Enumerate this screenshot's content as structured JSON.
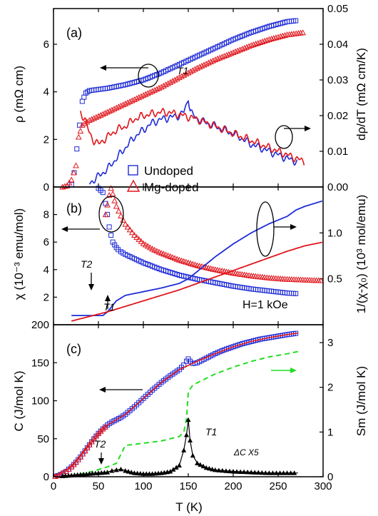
{
  "chart_data": [
    {
      "panel": "(a)",
      "type": "scatter",
      "xlim": [
        0,
        300
      ],
      "ylim_left": [
        0,
        7.5
      ],
      "ylim_right": [
        0,
        0.05
      ],
      "ylabel_left": "ρ (mΩ cm)",
      "ylabel_right": "dρ/dT (mΩ cm/K)",
      "yticks_left": [
        "0",
        "2",
        "4",
        "6"
      ],
      "yticks_right": [
        "0.00",
        "0.01",
        "0.02",
        "0.03",
        "0.04",
        "0.05"
      ],
      "annotations": [
        "T1"
      ],
      "series": [
        {
          "name": "Undoped",
          "kind": "rho",
          "axis": "left",
          "x": [
            20,
            23,
            26,
            29,
            32,
            36,
            40,
            50,
            60,
            80,
            100,
            120,
            140,
            160,
            180,
            200,
            220,
            240,
            260,
            272
          ],
          "y": [
            0.1,
            0.6,
            1.6,
            2.6,
            3.6,
            3.95,
            4.05,
            4.1,
            4.15,
            4.3,
            4.5,
            4.8,
            5.15,
            5.5,
            5.85,
            6.2,
            6.5,
            6.75,
            6.95,
            7.0
          ]
        },
        {
          "name": "Mg-doped",
          "kind": "rho",
          "axis": "left",
          "x": [
            10,
            15,
            20,
            25,
            28,
            32,
            40,
            60,
            80,
            100,
            120,
            140,
            160,
            180,
            200,
            220,
            240,
            260,
            280
          ],
          "y": [
            0.0,
            0.05,
            0.3,
            0.9,
            2.1,
            2.6,
            2.8,
            3.15,
            3.5,
            3.85,
            4.2,
            4.6,
            5.0,
            5.35,
            5.65,
            5.95,
            6.2,
            6.4,
            6.5
          ]
        },
        {
          "name": "Undoped dρ/dT",
          "kind": "drho",
          "axis": "right",
          "x": [
            40,
            50,
            60,
            70,
            80,
            90,
            100,
            110,
            120,
            130,
            140,
            145,
            148,
            150,
            152,
            155,
            160,
            180,
            200,
            220,
            240,
            260,
            272
          ],
          "y": [
            0.001,
            0.003,
            0.005,
            0.008,
            0.011,
            0.014,
            0.016,
            0.018,
            0.019,
            0.0195,
            0.02,
            0.021,
            0.023,
            0.025,
            0.022,
            0.02,
            0.019,
            0.017,
            0.015,
            0.012,
            0.01,
            0.008,
            0.007
          ]
        },
        {
          "name": "Mg-doped dρ/dT",
          "kind": "drho",
          "axis": "right",
          "x": [
            30,
            35,
            40,
            45,
            50,
            60,
            70,
            80,
            90,
            100,
            110,
            120,
            130,
            140,
            160,
            180,
            200,
            220,
            240,
            260,
            280
          ],
          "y": [
            0.021,
            0.019,
            0.015,
            0.013,
            0.012,
            0.014,
            0.016,
            0.017,
            0.019,
            0.02,
            0.0205,
            0.021,
            0.0208,
            0.0203,
            0.019,
            0.017,
            0.015,
            0.013,
            0.011,
            0.009,
            0.007
          ]
        }
      ]
    },
    {
      "panel": "(b)",
      "type": "scatter",
      "xlim": [
        0,
        300
      ],
      "ylim_left": [
        0,
        10
      ],
      "ylim_right": [
        0,
        1.5
      ],
      "ylabel_left": "χ (10⁻³ emu/mol)",
      "ylabel_right": "1/(χ-χ₀) (10³ mol/emu)",
      "yticks_left": [
        "2",
        "4",
        "6",
        "8"
      ],
      "yticks_right": [
        "0.5",
        "1.0"
      ],
      "annotations": [
        "T2",
        "T1",
        "H=1 kOe"
      ],
      "series": [
        {
          "name": "Undoped",
          "kind": "chi",
          "axis": "left",
          "x": [
            50,
            55,
            58,
            60,
            62,
            64,
            66,
            68,
            70,
            72,
            75,
            80,
            90,
            100,
            120,
            140,
            160,
            180,
            200,
            220,
            240,
            260,
            272
          ],
          "y": [
            9.9,
            9.6,
            8.8,
            8.0,
            7.1,
            6.5,
            6.0,
            5.8,
            5.6,
            5.45,
            5.3,
            5.1,
            4.8,
            4.5,
            4.0,
            3.6,
            3.3,
            3.05,
            2.8,
            2.6,
            2.45,
            2.3,
            2.25
          ]
        },
        {
          "name": "Mg-doped",
          "kind": "chi",
          "axis": "left",
          "x": [
            58,
            62,
            64,
            66,
            68,
            70,
            75,
            80,
            90,
            100,
            110,
            120,
            140,
            160,
            180,
            200,
            220,
            240,
            260,
            280,
            300
          ],
          "y": [
            8.0,
            9.4,
            9.9,
            9.5,
            9.0,
            8.6,
            7.9,
            7.3,
            6.5,
            5.9,
            5.5,
            5.2,
            4.7,
            4.3,
            4.0,
            3.75,
            3.55,
            3.4,
            3.3,
            3.25,
            3.2
          ]
        },
        {
          "name": "Undoped 1/(χ-χ₀)",
          "kind": "invchi",
          "axis": "right",
          "x": [
            20,
            30,
            40,
            50,
            55,
            60,
            65,
            70,
            80,
            90,
            100,
            120,
            140,
            150,
            160,
            180,
            200,
            220,
            240,
            260,
            270,
            280,
            290,
            300
          ],
          "y": [
            0.1,
            0.1,
            0.1,
            0.1,
            0.1,
            0.14,
            0.2,
            0.26,
            0.32,
            0.34,
            0.36,
            0.4,
            0.45,
            0.5,
            0.58,
            0.74,
            0.88,
            1.0,
            1.1,
            1.18,
            1.25,
            1.29,
            1.32,
            1.35
          ]
        },
        {
          "name": "Mg-doped 1/(χ-χ₀)",
          "kind": "invchi",
          "axis": "right",
          "x": [
            20,
            40,
            60,
            80,
            100,
            120,
            140,
            160,
            180,
            200,
            220,
            240,
            260,
            280,
            300
          ],
          "y": [
            0.04,
            0.09,
            0.14,
            0.2,
            0.26,
            0.32,
            0.38,
            0.45,
            0.52,
            0.59,
            0.66,
            0.73,
            0.8,
            0.86,
            0.9
          ]
        }
      ]
    },
    {
      "panel": "(c)",
      "type": "scatter",
      "xlim": [
        0,
        300
      ],
      "ylim_left": [
        0,
        200
      ],
      "ylim_right": [
        0,
        3.4
      ],
      "xlabel": "T (K)",
      "ylabel_left": "C (J/mol K)",
      "ylabel_right": "Sm (J/mol K)",
      "xticks": [
        "0",
        "50",
        "100",
        "150",
        "200",
        "250",
        "300"
      ],
      "yticks_left": [
        "0",
        "50",
        "100",
        "150",
        "200"
      ],
      "yticks_right": [
        "0",
        "1",
        "2",
        "3"
      ],
      "annotations": [
        "T2",
        "T1",
        "ΔC X5"
      ],
      "series": [
        {
          "name": "Undoped C",
          "kind": "c_sq",
          "axis": "left",
          "x": [
            2,
            5,
            8,
            11,
            14,
            17,
            20,
            25,
            30,
            35,
            40,
            45,
            50,
            55,
            60,
            65,
            70,
            75,
            80,
            90,
            100,
            110,
            120,
            130,
            140,
            145,
            148,
            150,
            152,
            155,
            160,
            170,
            180,
            190,
            200,
            210,
            220,
            230,
            240,
            250,
            260,
            272
          ],
          "y": [
            0.5,
            1.5,
            3,
            5,
            7,
            10,
            13,
            19,
            26,
            34,
            42,
            50,
            57,
            63,
            68,
            72,
            75,
            78,
            82,
            92,
            103,
            114,
            124,
            133,
            141,
            147,
            152,
            155,
            152,
            149,
            150,
            156,
            162,
            167,
            171,
            175,
            178,
            181,
            183,
            185,
            187,
            189
          ]
        },
        {
          "name": "Mg-doped C",
          "kind": "c_tri",
          "axis": "left",
          "x": [
            2,
            5,
            8,
            11,
            14,
            17,
            20,
            25,
            30,
            35,
            40,
            45,
            50,
            55,
            60
          ],
          "y": [
            0.5,
            1.5,
            3,
            5,
            7,
            10,
            13,
            19,
            26,
            34,
            42,
            50,
            57,
            63,
            68
          ]
        },
        {
          "name": "C fit",
          "kind": "c_fit",
          "axis": "left",
          "x": [
            0,
            20,
            40,
            60,
            80,
            100,
            120,
            140,
            160,
            180,
            200,
            220,
            240,
            260,
            272
          ],
          "y": [
            0,
            13,
            42,
            68,
            82,
            103,
            124,
            141,
            152,
            162,
            171,
            178,
            183,
            187,
            189
          ]
        },
        {
          "name": "Sm",
          "kind": "entropy",
          "axis": "right",
          "x": [
            20,
            40,
            60,
            70,
            75,
            80,
            100,
            120,
            140,
            145,
            148,
            150,
            155,
            160,
            180,
            200,
            220,
            240,
            260,
            272
          ],
          "y": [
            0.02,
            0.1,
            0.22,
            0.3,
            0.5,
            0.7,
            0.75,
            0.8,
            0.9,
            1.0,
            1.3,
            1.9,
            2.05,
            2.1,
            2.3,
            2.45,
            2.58,
            2.68,
            2.75,
            2.8
          ]
        },
        {
          "name": "ΔC X5",
          "kind": "dc",
          "axis": "left",
          "x": [
            10,
            20,
            30,
            40,
            50,
            60,
            65,
            70,
            75,
            80,
            90,
            100,
            110,
            120,
            130,
            140,
            145,
            148,
            150,
            152,
            155,
            160,
            170,
            180,
            200,
            220,
            240,
            260,
            272
          ],
          "y": [
            1,
            2,
            3,
            4,
            5,
            6,
            8,
            9,
            10,
            8,
            5,
            4,
            4,
            5,
            7,
            15,
            35,
            55,
            75,
            48,
            28,
            18,
            12,
            9,
            7,
            6,
            5,
            5,
            5
          ]
        }
      ]
    }
  ],
  "legend": {
    "items": [
      {
        "label": "Undoped",
        "color": "#1f2bd6",
        "marker": "square"
      },
      {
        "label": "Mg-doped",
        "color": "#e0141b",
        "marker": "triangle"
      }
    ]
  },
  "colors": {
    "undoped": "#1f2bd6",
    "mgdoped": "#e0141b",
    "entropy": "#22dd22",
    "black": "#000000"
  }
}
